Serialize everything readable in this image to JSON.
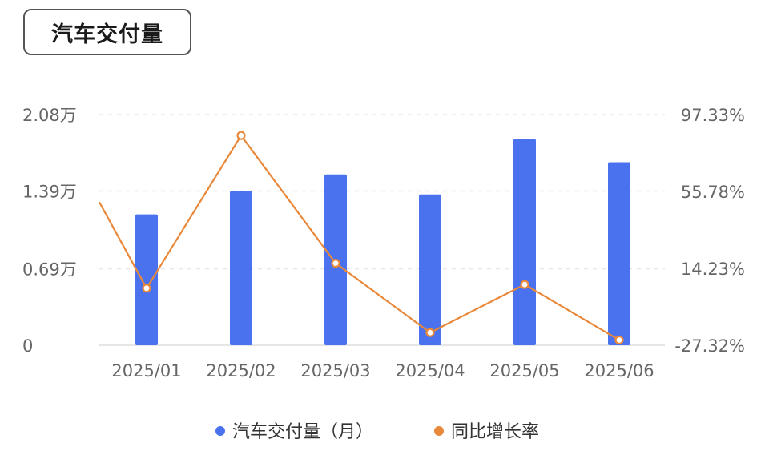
{
  "chart_data": {
    "type": "bar",
    "title": "汽车交付量",
    "categories": [
      "2025/01",
      "2025/02",
      "2025/03",
      "2025/04",
      "2025/05",
      "2025/06"
    ],
    "series": [
      {
        "name": "汽车交付量（月）",
        "type": "bar",
        "axis": "left",
        "color": "#4a72ee",
        "values": [
          11800,
          13900,
          15400,
          13600,
          18600,
          16500
        ]
      },
      {
        "name": "同比增长率",
        "type": "line",
        "axis": "right",
        "color": "#e8883a",
        "values": [
          3.5,
          86.0,
          17.0,
          -20.5,
          5.5,
          -24.5
        ],
        "line_start_value": 50.0
      }
    ],
    "y_left": {
      "ticks": [
        0,
        6900,
        13900,
        20800
      ],
      "tick_labels": [
        "0",
        "0.69万",
        "1.39万",
        "2.08万"
      ],
      "ylim": [
        0,
        20800
      ]
    },
    "y_right": {
      "ticks": [
        -27.32,
        14.23,
        55.78,
        97.33
      ],
      "tick_labels": [
        "-27.32%",
        "14.23%",
        "55.78%",
        "97.33%"
      ],
      "ylim": [
        -27.32,
        97.33
      ]
    },
    "grid": true,
    "legend_position": "bottom-center"
  }
}
